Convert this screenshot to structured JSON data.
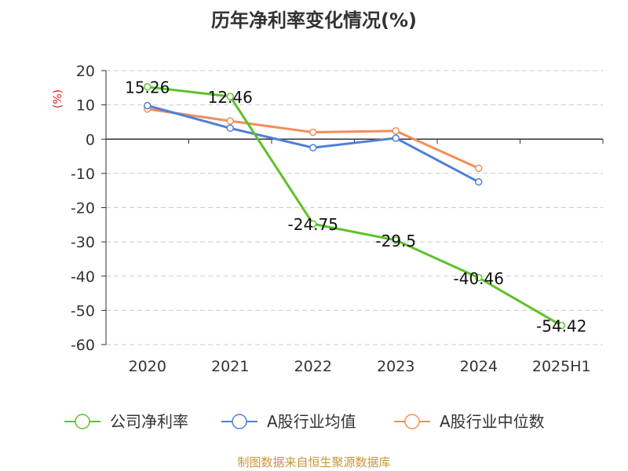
{
  "title": "历年净利率变化情况(%)",
  "source": "制图数据来自恒生聚源数据库",
  "chart_data": {
    "type": "line",
    "title": "历年净利率变化情况(%)",
    "ylabel": "(%)",
    "categories": [
      "2020",
      "2021",
      "2022",
      "2023",
      "2024",
      "2025H1"
    ],
    "ylim": [
      -60,
      20
    ],
    "yticks": [
      20,
      10,
      0,
      -10,
      -20,
      -30,
      -40,
      -50,
      -60
    ],
    "grid": true,
    "legend_position": "bottom",
    "series": [
      {
        "name": "公司净利率",
        "color": "#5cc22a",
        "values": [
          15.26,
          12.46,
          -24.75,
          -29.5,
          -40.46,
          -54.42
        ],
        "labels": [
          "15.26",
          "12.46",
          "-24.75",
          "-29.5",
          "-40.46",
          "-54.42"
        ]
      },
      {
        "name": "A股行业均值",
        "color": "#4f7fd9",
        "values": [
          9.8,
          3.2,
          -2.5,
          0.3,
          -12.5,
          null
        ]
      },
      {
        "name": "A股行业中位数",
        "color": "#f48d5b",
        "values": [
          8.8,
          5.3,
          2.0,
          2.4,
          -8.5,
          null
        ]
      }
    ]
  }
}
